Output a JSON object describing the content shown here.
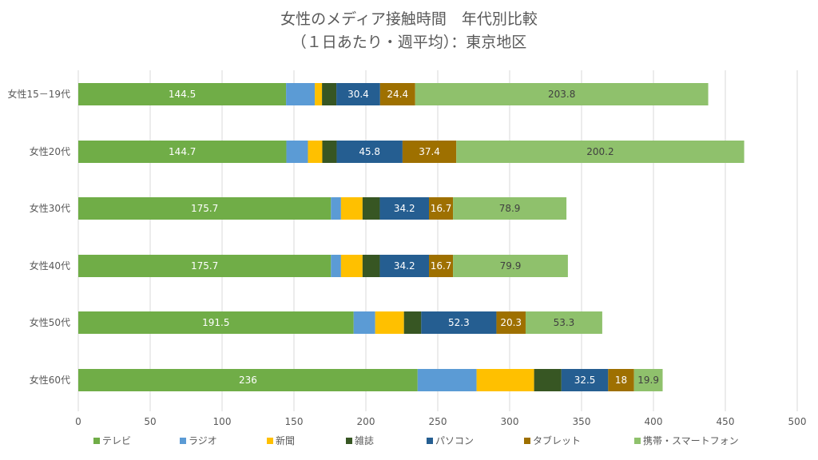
{
  "chart_data": {
    "type": "bar",
    "orientation": "horizontal",
    "stacked": true,
    "title": [
      "女性のメディア接触時間　年代別比較",
      "（１日あたり・週平均）：東京地区"
    ],
    "xlabel": "",
    "ylabel": "",
    "xlim": [
      0,
      500
    ],
    "xticks": [
      0,
      50,
      100,
      150,
      200,
      250,
      300,
      350,
      400,
      450,
      500
    ],
    "grid": true,
    "legend_position": "bottom",
    "categories": [
      "女性15－19代",
      "女性20代",
      "女性30代",
      "女性40代",
      "女性50代",
      "女性60代"
    ],
    "series": [
      {
        "name": "テレビ",
        "color": "#70ad47",
        "label_color": "#ffffff",
        "values": [
          144.5,
          144.7,
          175.7,
          175.7,
          191.5,
          236
        ],
        "labels": [
          "144.5",
          "144.7",
          "175.7",
          "175.7",
          "191.5",
          "236"
        ]
      },
      {
        "name": "ラジオ",
        "color": "#5b9bd5",
        "label_color": "#ffffff",
        "values": [
          20,
          15,
          7,
          7,
          15,
          41
        ],
        "labels": [
          "",
          "",
          "",
          "",
          "",
          ""
        ]
      },
      {
        "name": "新聞",
        "color": "#ffc000",
        "label_color": "#ffffff",
        "values": [
          5,
          10,
          15,
          15,
          20,
          40
        ],
        "labels": [
          "",
          "",
          "",
          "",
          "",
          ""
        ]
      },
      {
        "name": "雑誌",
        "color": "#375623",
        "label_color": "#ffffff",
        "values": [
          10,
          10,
          12,
          12,
          12,
          19
        ],
        "labels": [
          "",
          "",
          "",
          "",
          "",
          ""
        ]
      },
      {
        "name": "パソコン",
        "color": "#255e91",
        "label_color": "#ffffff",
        "values": [
          30.4,
          45.8,
          34.2,
          34.2,
          52.3,
          32.5
        ],
        "labels": [
          "30.4",
          "45.8",
          "34.2",
          "34.2",
          "52.3",
          "32.5"
        ]
      },
      {
        "name": "タブレット",
        "color": "#9e7000",
        "label_color": "#ffffff",
        "values": [
          24.4,
          37.4,
          16.7,
          16.7,
          20.3,
          18
        ],
        "labels": [
          "24.4",
          "37.4",
          "16.7",
          "16.7",
          "20.3",
          "18"
        ]
      },
      {
        "name": "携帯・スマートフォン",
        "color": "#8fc16c",
        "label_color": "#404040",
        "values": [
          203.8,
          200.2,
          78.9,
          79.9,
          53.3,
          19.9
        ],
        "labels": [
          "203.8",
          "200.2",
          "78.9",
          "79.9",
          "53.3",
          "19.9"
        ]
      }
    ]
  }
}
